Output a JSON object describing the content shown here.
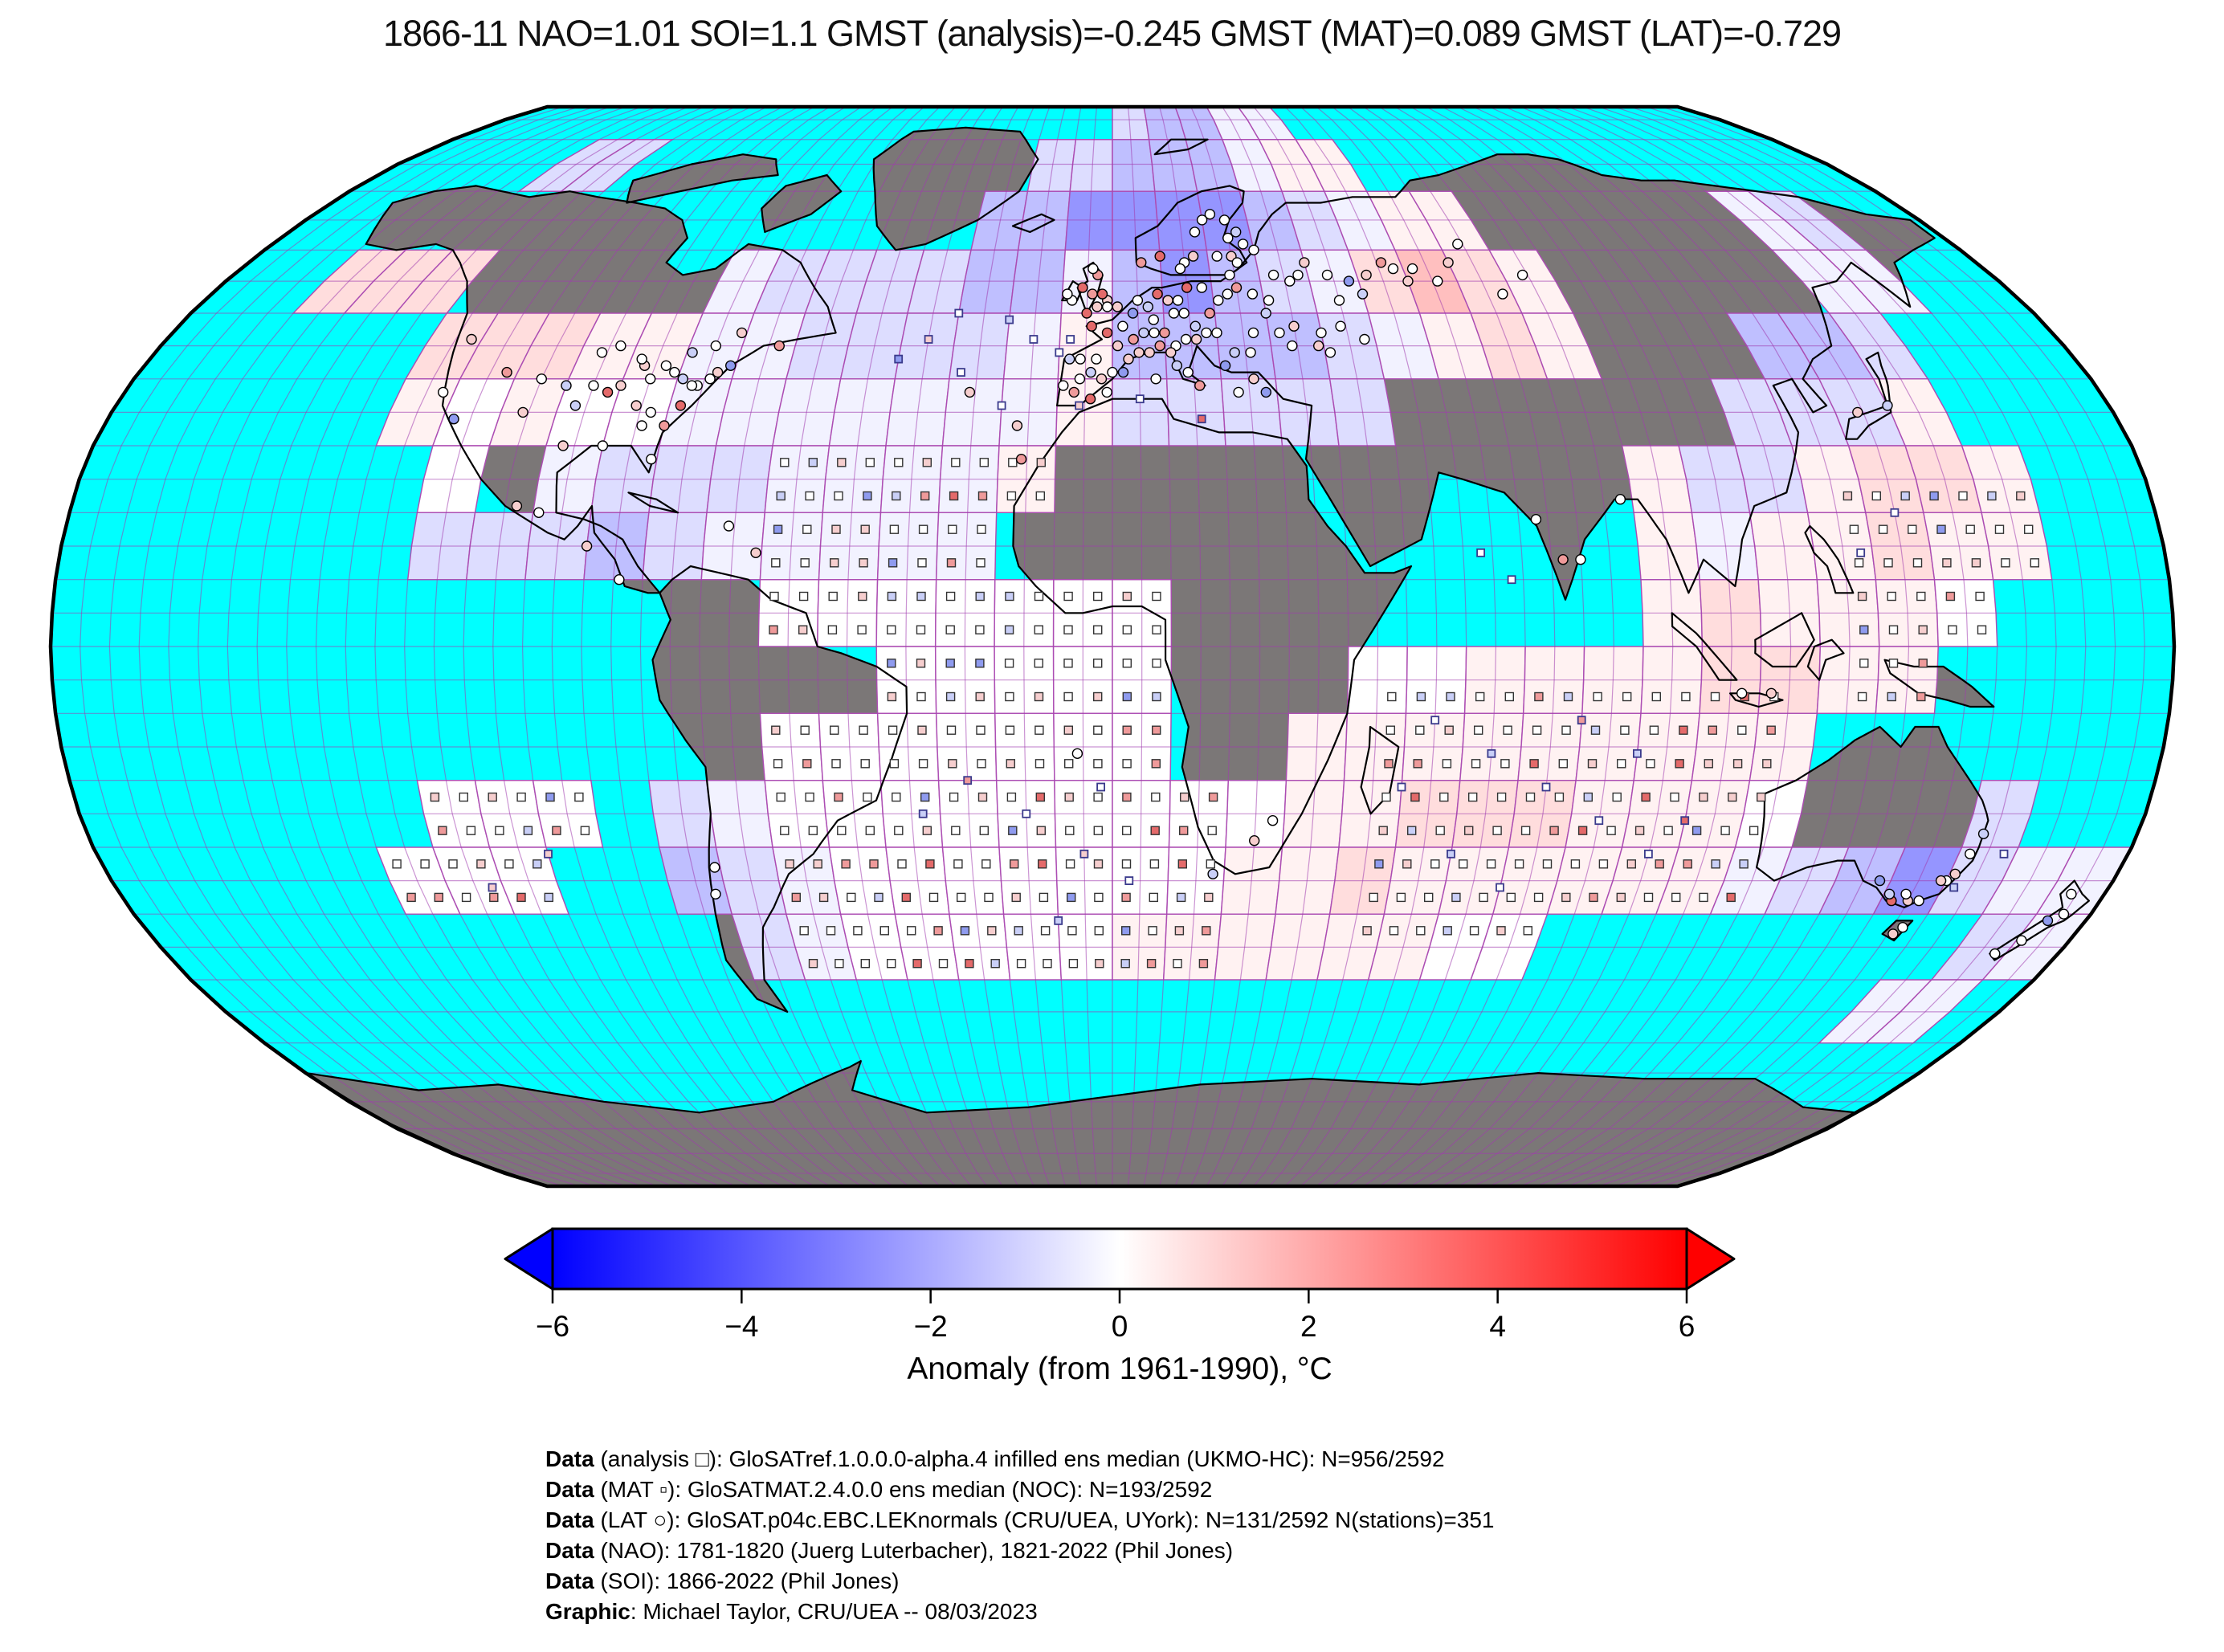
{
  "title": "1866-11 NAO=1.01 SOI=1.1 GMST (analysis)=-0.245 GMST (MAT)=0.089 GMST (LAT)=-0.729",
  "chart_data": {
    "type": "heatmap",
    "projection": "robinson",
    "title": "1866-11 NAO=1.01 SOI=1.1 GMST (analysis)=-0.245 GMST (MAT)=0.089 GMST (LAT)=-0.729",
    "cell_deg": 10,
    "lon_start": -180,
    "lat_start": 90,
    "value_codes": {
      "0": 0.0,
      "1": -0.3,
      "2": -0.8,
      "3": -1.5,
      "4": -2.5,
      "5": -3.5,
      "a": 0.3,
      "b": 0.8,
      "c": 1.5,
      "d": 2.5
    },
    "missing_code": ".",
    "rows": [
      "..................23311.............",
      "....22..........223331aa............",
      "...............334444321aa......12..",
      "..bbb.....1222233134321bcba.....11..",
      ".....bbbaa1122221a333321aba...332...",
      ".....a0a001111111a22222......222a...",
      "......0.12221111a..........a22abba..",
      "......2223211111...........a1aabaa..",
      "............0000000........abaaa0...",
      "..............00000...00aaaabbaa....",
      "............0000000..aaaaaaaaa......",
      "......000.21000000000aabbbaaa0...2..",
      ".....000..3210000000aabaaaaaa1234211",
      "...........2100000aaaaaa00........21",
      ".................................11.",
      "....................................",
      "....................................",
      "...................................."
    ],
    "colorbar": {
      "min": -6,
      "max": 6,
      "ticks": [
        -6,
        -4,
        -2,
        0,
        2,
        4,
        6
      ],
      "tick_labels": [
        "−6",
        "−4",
        "−2",
        "0",
        "2",
        "4",
        "6"
      ],
      "label": "Anomaly (from 1961-1990), °C",
      "left_color": "#0000ff",
      "mid_color": "#ffffff",
      "right_color": "#ff0000"
    }
  },
  "map_style": {
    "ocean_missing_color": "#00ffff",
    "land_missing_color": "#7b7777",
    "graticule_color": "rgba(160,60,175,0.55)",
    "cell_border_color": "#b65ab6",
    "coastline_color": "#000000",
    "outline_color": "#000000"
  },
  "markers": {
    "legend": {
      "analysis": "□",
      "mat": "▫",
      "lat": "○"
    },
    "fill_palette": [
      "#ffffff",
      "#f6cece",
      "#c9cff7",
      "#ef9a9a",
      "#8f9bef",
      "#e46a6a"
    ],
    "lat_stations": [
      [
        -3,
        51
      ],
      [
        -1,
        52
      ],
      [
        1,
        51
      ],
      [
        2,
        48
      ],
      [
        4,
        50
      ],
      [
        5,
        52
      ],
      [
        7,
        51
      ],
      [
        8,
        49
      ],
      [
        9,
        53
      ],
      [
        11,
        52
      ],
      [
        13,
        52
      ],
      [
        12,
        50
      ],
      [
        14,
        50
      ],
      [
        16,
        48
      ],
      [
        6,
        47
      ],
      [
        8,
        47
      ],
      [
        10,
        47
      ],
      [
        12,
        45
      ],
      [
        14,
        46
      ],
      [
        16,
        46
      ],
      [
        18,
        47
      ],
      [
        20,
        47
      ],
      [
        19,
        50
      ],
      [
        21,
        52
      ],
      [
        23,
        53
      ],
      [
        15,
        54
      ],
      [
        18,
        54
      ],
      [
        24,
        56
      ],
      [
        22,
        59
      ],
      [
        25,
        59
      ],
      [
        26,
        58
      ],
      [
        17,
        59
      ],
      [
        15,
        58
      ],
      [
        10,
        59
      ],
      [
        6,
        58
      ],
      [
        30,
        60
      ],
      [
        28,
        61
      ],
      [
        25,
        62
      ],
      [
        27,
        63
      ],
      [
        18,
        63
      ],
      [
        20,
        65
      ],
      [
        22,
        66
      ],
      [
        25,
        65
      ],
      [
        14,
        57
      ],
      [
        25,
        54
      ],
      [
        28,
        53
      ],
      [
        31,
        52
      ],
      [
        33,
        56
      ],
      [
        36,
        55
      ],
      [
        38,
        56
      ],
      [
        40,
        58
      ],
      [
        44,
        56
      ],
      [
        48,
        55
      ],
      [
        50,
        53
      ],
      [
        52,
        56
      ],
      [
        56,
        58
      ],
      [
        58,
        57
      ],
      [
        60,
        55
      ],
      [
        45,
        52
      ],
      [
        40,
        47
      ],
      [
        44,
        48
      ],
      [
        48,
        46
      ],
      [
        34,
        45
      ],
      [
        39,
        45
      ],
      [
        41,
        44
      ],
      [
        30,
        50
      ],
      [
        32,
        47
      ],
      [
        35,
        48
      ],
      [
        27,
        47
      ],
      [
        26,
        44
      ],
      [
        23,
        44
      ],
      [
        21,
        42
      ],
      [
        23,
        38
      ],
      [
        26,
        40
      ],
      [
        28,
        38
      ],
      [
        62,
        57
      ],
      [
        66,
        55
      ],
      [
        70,
        58
      ],
      [
        74,
        61
      ],
      [
        78,
        53
      ],
      [
        84,
        56
      ],
      [
        -8,
        43
      ],
      [
        -6,
        40
      ],
      [
        -4,
        41
      ],
      [
        -2,
        40
      ],
      [
        -4,
        37
      ],
      [
        -7,
        38
      ],
      [
        -1,
        38
      ],
      [
        0,
        41
      ],
      [
        2,
        41
      ],
      [
        -3,
        43
      ],
      [
        -6,
        43
      ],
      [
        -9,
        39
      ],
      [
        3,
        43
      ],
      [
        5,
        44
      ],
      [
        7,
        44
      ],
      [
        4,
        46
      ],
      [
        1,
        45
      ],
      [
        -1,
        47
      ],
      [
        -4,
        48
      ],
      [
        -6,
        54
      ],
      [
        -4,
        53
      ],
      [
        -2,
        53
      ],
      [
        -3,
        56
      ],
      [
        -4,
        57
      ],
      [
        -1,
        51
      ],
      [
        -5,
        50
      ],
      [
        -8,
        52
      ],
      [
        -9,
        53
      ],
      [
        9,
        45
      ],
      [
        11,
        44
      ],
      [
        12,
        42
      ],
      [
        14,
        41
      ],
      [
        16,
        39
      ],
      [
        8,
        40
      ],
      [
        -71,
        42
      ],
      [
        -73,
        41
      ],
      [
        -74,
        40
      ],
      [
        -76,
        39
      ],
      [
        -77,
        39
      ],
      [
        -79,
        40
      ],
      [
        -81,
        41
      ],
      [
        -83,
        42
      ],
      [
        -85,
        40
      ],
      [
        -87,
        42
      ],
      [
        -88,
        43
      ],
      [
        -90,
        39
      ],
      [
        -92,
        38
      ],
      [
        -95,
        39
      ],
      [
        -97,
        36
      ],
      [
        -100,
        39
      ],
      [
        -105,
        40
      ],
      [
        -106,
        35
      ],
      [
        -112,
        41
      ],
      [
        -122,
        38
      ],
      [
        -122,
        46
      ],
      [
        -118,
        34
      ],
      [
        -90,
        30
      ],
      [
        -84,
        33
      ],
      [
        -80,
        33
      ],
      [
        -86,
        36
      ],
      [
        -93,
        45
      ],
      [
        -96,
        44
      ],
      [
        -83,
        35
      ],
      [
        -78,
        36
      ],
      [
        -81,
        28
      ],
      [
        -97,
        30
      ],
      [
        -99,
        20
      ],
      [
        -103,
        21
      ],
      [
        -79,
        44
      ],
      [
        -75,
        45
      ],
      [
        -71,
        47
      ],
      [
        -63,
        45
      ],
      [
        147,
        -38
      ],
      [
        145,
        -38
      ],
      [
        144,
        -37
      ],
      [
        142,
        -38
      ],
      [
        150,
        -35
      ],
      [
        151,
        -34
      ],
      [
        153,
        -28
      ],
      [
        149,
        -35
      ],
      [
        147,
        -42
      ],
      [
        146,
        -43
      ],
      [
        138,
        -35
      ],
      [
        141,
        -37
      ],
      [
        152,
        -31
      ],
      [
        174,
        -37
      ],
      [
        175,
        -40
      ],
      [
        173,
        -41
      ],
      [
        171,
        -44
      ],
      [
        168,
        -46
      ],
      [
        -71,
        -33
      ],
      [
        -72,
        -37
      ],
      [
        18,
        -34
      ],
      [
        25,
        -29
      ],
      [
        28,
        -26
      ],
      [
        73,
        19
      ],
      [
        77,
        13
      ],
      [
        80,
        13
      ],
      [
        88,
        22
      ],
      [
        140,
        36
      ],
      [
        134,
        35
      ],
      [
        107,
        -7
      ],
      [
        112,
        -7
      ],
      [
        -17,
        33
      ],
      [
        -16,
        28
      ],
      [
        -26,
        38
      ],
      [
        -66,
        18
      ],
      [
        -61,
        14
      ],
      [
        -84,
        10
      ],
      [
        -90,
        15
      ],
      [
        -6,
        -16
      ]
    ],
    "mat_points": [
      [
        -30,
        50
      ],
      [
        -20,
        49
      ],
      [
        -35,
        46
      ],
      [
        -40,
        43
      ],
      [
        -15,
        46
      ],
      [
        -28,
        41
      ],
      [
        -20,
        36
      ],
      [
        -8,
        46
      ],
      [
        -10,
        44
      ],
      [
        5,
        37
      ],
      [
        16,
        34
      ],
      [
        -6,
        36
      ],
      [
        -25,
        -20
      ],
      [
        -15,
        -25
      ],
      [
        -5,
        -31
      ],
      [
        3,
        -35
      ],
      [
        -33,
        -25
      ],
      [
        -10,
        -41
      ],
      [
        -2,
        -21
      ],
      [
        55,
        -11
      ],
      [
        65,
        -16
      ],
      [
        75,
        -21
      ],
      [
        85,
        -26
      ],
      [
        95,
        -31
      ],
      [
        60,
        -31
      ],
      [
        70,
        -36
      ],
      [
        80,
        -11
      ],
      [
        90,
        -16
      ],
      [
        50,
        -21
      ],
      [
        100,
        -26
      ],
      [
        63,
        14
      ],
      [
        68,
        10
      ],
      [
        -100,
        -31
      ],
      [
        -112,
        -36
      ],
      [
        158,
        -31
      ],
      [
        152,
        -36
      ],
      [
        128,
        14
      ],
      [
        135,
        20
      ]
    ],
    "analysis_regions": [
      {
        "lon0": -60,
        "lon1": 20,
        "lat0": -50,
        "lat1": 30
      },
      {
        "lon0": 45,
        "lon1": 115,
        "lat0": -45,
        "lat1": -5
      },
      {
        "lon0": -130,
        "lon1": -90,
        "lat0": -40,
        "lat1": -22
      },
      {
        "lon0": 125,
        "lon1": 160,
        "lat0": -10,
        "lat1": 25
      }
    ],
    "analysis_step_deg": 5
  },
  "credits": [
    {
      "b": "Data",
      "r": " (analysis □): GloSATref.1.0.0.0-alpha.4 infilled ens median (UKMO-HC): N=956/2592"
    },
    {
      "b": "Data",
      "r": " (MAT ▫): GloSATMAT.2.4.0.0 ens median (NOC): N=193/2592"
    },
    {
      "b": "Data",
      "r": " (LAT ○): GloSAT.p04c.EBC.LEKnormals (CRU/UEA, UYork): N=131/2592 N(stations)=351"
    },
    {
      "b": "Data",
      "r": " (NAO): 1781-1820 (Juerg Luterbacher), 1821-2022 (Phil Jones)"
    },
    {
      "b": "Data",
      "r": " (SOI): 1866-2022 (Phil Jones)"
    },
    {
      "b": "Graphic",
      "r": ": Michael Taylor, CRU/UEA -- 08/03/2023"
    }
  ]
}
